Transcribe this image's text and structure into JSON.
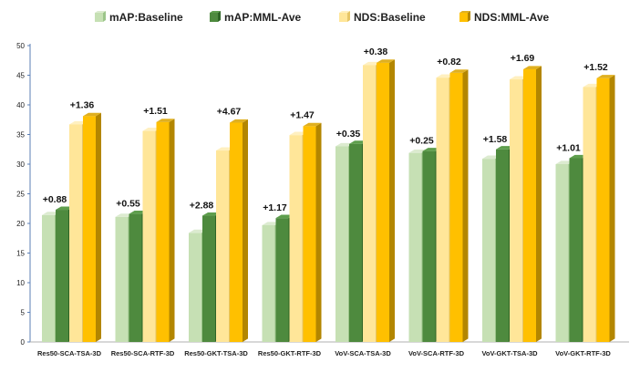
{
  "chart_data": {
    "type": "bar",
    "categories": [
      "Res50-SCA-TSA-3D",
      "Res50-SCA-RTF-3D",
      "Res50-GKT-TSA-3D",
      "Res50-GKT-RTF-3D",
      "VoV-SCA-TSA-3D",
      "VoV-SCA-RTF-3D",
      "VoV-GKT-TSA-3D",
      "VoV-GKT-RTF-3D"
    ],
    "series": [
      {
        "name": "mAP:Baseline",
        "values": [
          21.4,
          21.1,
          18.4,
          19.7,
          33.0,
          31.9,
          30.9,
          30.0
        ],
        "color": "#c6e0b4",
        "side": "#9cc58a",
        "top": "#dcebd0"
      },
      {
        "name": "mAP:MML-Ave",
        "values": [
          22.3,
          21.6,
          21.3,
          20.9,
          33.4,
          32.2,
          32.5,
          31.0
        ],
        "color": "#4e8a3e",
        "side": "#2f6526",
        "top": "#5e9e4d"
      },
      {
        "name": "NDS:Baseline",
        "values": [
          36.7,
          35.6,
          32.3,
          34.9,
          46.7,
          44.6,
          44.3,
          43.0
        ],
        "color": "#ffe699",
        "side": "#e6c566",
        "top": "#fff0c0"
      },
      {
        "name": "NDS:MML-Ave",
        "values": [
          38.1,
          37.1,
          37.0,
          36.4,
          47.1,
          45.4,
          46.0,
          44.5
        ],
        "color": "#ffc000",
        "side": "#b38600",
        "top": "#e0b020"
      }
    ],
    "annotations": {
      "map": [
        "+0.88",
        "+0.55",
        "+2.88",
        "+1.17",
        "+0.35",
        "+0.25",
        "+1.58",
        "+1.01"
      ],
      "nds": [
        "+1.36",
        "+1.51",
        "+4.67",
        "+1.47",
        "+0.38",
        "+0.82",
        "+1.69",
        "+1.52"
      ]
    },
    "ylim": [
      0,
      50
    ],
    "yticks": [
      0,
      5,
      10,
      15,
      20,
      25,
      30,
      35,
      40,
      45,
      50
    ],
    "grid": false,
    "legend_position": "top"
  }
}
